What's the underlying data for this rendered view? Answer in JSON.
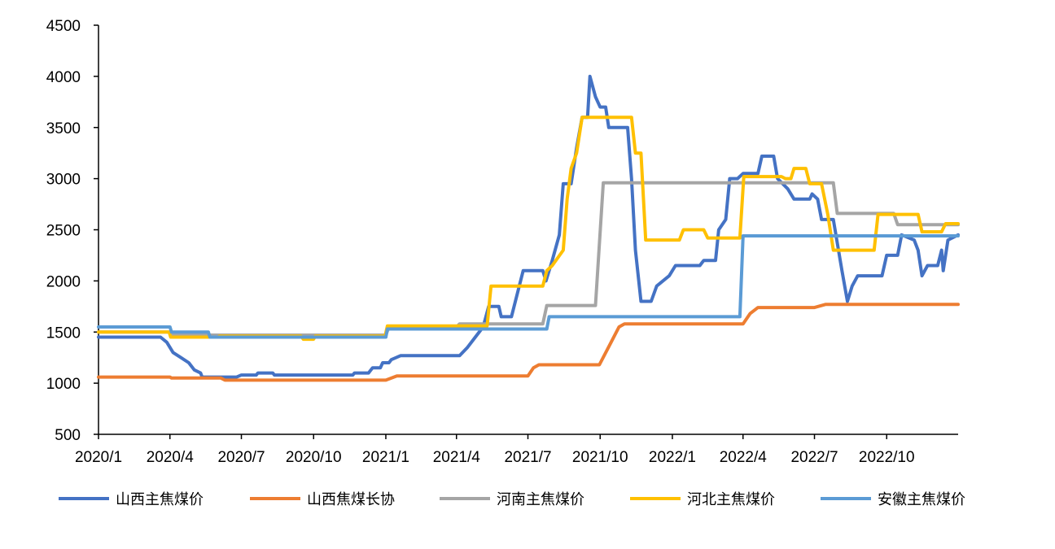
{
  "chart_data": {
    "type": "line",
    "title": "",
    "xlabel": "",
    "ylabel": "",
    "ylim": [
      500,
      4500
    ],
    "y_ticks": [
      500,
      1000,
      1500,
      2000,
      2500,
      3000,
      3500,
      4000,
      4500
    ],
    "x_range": [
      "2020-01-01",
      "2022-12-31"
    ],
    "x_ticks": [
      {
        "date": "2020-01-01",
        "label": "2020/1"
      },
      {
        "date": "2020-04-01",
        "label": "2020/4"
      },
      {
        "date": "2020-07-01",
        "label": "2020/7"
      },
      {
        "date": "2020-10-01",
        "label": "2020/10"
      },
      {
        "date": "2021-01-01",
        "label": "2021/1"
      },
      {
        "date": "2021-04-01",
        "label": "2021/4"
      },
      {
        "date": "2021-07-01",
        "label": "2021/7"
      },
      {
        "date": "2021-10-01",
        "label": "2021/10"
      },
      {
        "date": "2022-01-01",
        "label": "2022/1"
      },
      {
        "date": "2022-04-01",
        "label": "2022/4"
      },
      {
        "date": "2022-07-01",
        "label": "2022/7"
      },
      {
        "date": "2022-10-01",
        "label": "2022/10"
      }
    ],
    "grid": false,
    "legend_position": "bottom",
    "series": [
      {
        "name": "山西主焦煤价",
        "color": "#4472C4",
        "points": [
          [
            "2020-01-01",
            1450
          ],
          [
            "2020-03-20",
            1450
          ],
          [
            "2020-03-28",
            1400
          ],
          [
            "2020-04-05",
            1300
          ],
          [
            "2020-04-15",
            1250
          ],
          [
            "2020-04-25",
            1200
          ],
          [
            "2020-05-02",
            1130
          ],
          [
            "2020-05-10",
            1100
          ],
          [
            "2020-05-12",
            1060
          ],
          [
            "2020-06-25",
            1060
          ],
          [
            "2020-07-01",
            1080
          ],
          [
            "2020-07-20",
            1080
          ],
          [
            "2020-07-22",
            1100
          ],
          [
            "2020-08-10",
            1100
          ],
          [
            "2020-08-12",
            1080
          ],
          [
            "2020-11-20",
            1080
          ],
          [
            "2020-11-22",
            1100
          ],
          [
            "2020-12-10",
            1100
          ],
          [
            "2020-12-15",
            1150
          ],
          [
            "2020-12-25",
            1150
          ],
          [
            "2020-12-28",
            1200
          ],
          [
            "2021-01-05",
            1200
          ],
          [
            "2021-01-08",
            1230
          ],
          [
            "2021-01-20",
            1270
          ],
          [
            "2021-04-05",
            1270
          ],
          [
            "2021-04-15",
            1350
          ],
          [
            "2021-04-25",
            1450
          ],
          [
            "2021-05-05",
            1550
          ],
          [
            "2021-05-12",
            1750
          ],
          [
            "2021-05-25",
            1750
          ],
          [
            "2021-05-28",
            1650
          ],
          [
            "2021-06-10",
            1650
          ],
          [
            "2021-06-15",
            1800
          ],
          [
            "2021-06-25",
            2100
          ],
          [
            "2021-07-20",
            2100
          ],
          [
            "2021-07-24",
            2000
          ],
          [
            "2021-08-01",
            2200
          ],
          [
            "2021-08-10",
            2450
          ],
          [
            "2021-08-15",
            2950
          ],
          [
            "2021-08-25",
            2950
          ],
          [
            "2021-09-01",
            3300
          ],
          [
            "2021-09-08",
            3600
          ],
          [
            "2021-09-15",
            3600
          ],
          [
            "2021-09-18",
            4000
          ],
          [
            "2021-09-25",
            3800
          ],
          [
            "2021-10-01",
            3700
          ],
          [
            "2021-10-08",
            3700
          ],
          [
            "2021-10-12",
            3500
          ],
          [
            "2021-11-05",
            3500
          ],
          [
            "2021-11-10",
            3000
          ],
          [
            "2021-11-15",
            2300
          ],
          [
            "2021-11-22",
            1800
          ],
          [
            "2021-12-05",
            1800
          ],
          [
            "2021-12-12",
            1950
          ],
          [
            "2021-12-28",
            2050
          ],
          [
            "2022-01-05",
            2150
          ],
          [
            "2022-02-05",
            2150
          ],
          [
            "2022-02-10",
            2200
          ],
          [
            "2022-02-25",
            2200
          ],
          [
            "2022-03-01",
            2500
          ],
          [
            "2022-03-10",
            2600
          ],
          [
            "2022-03-15",
            3000
          ],
          [
            "2022-03-25",
            3000
          ],
          [
            "2022-04-01",
            3050
          ],
          [
            "2022-04-20",
            3050
          ],
          [
            "2022-04-25",
            3220
          ],
          [
            "2022-05-10",
            3220
          ],
          [
            "2022-05-15",
            3000
          ],
          [
            "2022-05-28",
            2900
          ],
          [
            "2022-06-05",
            2800
          ],
          [
            "2022-06-25",
            2800
          ],
          [
            "2022-06-28",
            2850
          ],
          [
            "2022-07-05",
            2800
          ],
          [
            "2022-07-10",
            2600
          ],
          [
            "2022-07-25",
            2600
          ],
          [
            "2022-08-05",
            2100
          ],
          [
            "2022-08-12",
            1800
          ],
          [
            "2022-08-18",
            1950
          ],
          [
            "2022-08-25",
            2050
          ],
          [
            "2022-09-25",
            2050
          ],
          [
            "2022-10-01",
            2250
          ],
          [
            "2022-10-15",
            2250
          ],
          [
            "2022-10-20",
            2450
          ],
          [
            "2022-11-05",
            2400
          ],
          [
            "2022-11-10",
            2300
          ],
          [
            "2022-11-15",
            2050
          ],
          [
            "2022-11-22",
            2150
          ],
          [
            "2022-12-05",
            2150
          ],
          [
            "2022-12-10",
            2300
          ],
          [
            "2022-12-12",
            2100
          ],
          [
            "2022-12-18",
            2400
          ],
          [
            "2022-12-31",
            2450
          ]
        ]
      },
      {
        "name": "山西焦煤长协",
        "color": "#ED7D31",
        "points": [
          [
            "2020-01-01",
            1060
          ],
          [
            "2020-04-01",
            1060
          ],
          [
            "2020-04-03",
            1050
          ],
          [
            "2020-06-05",
            1050
          ],
          [
            "2020-06-10",
            1030
          ],
          [
            "2021-01-01",
            1030
          ],
          [
            "2021-01-15",
            1070
          ],
          [
            "2021-07-01",
            1070
          ],
          [
            "2021-07-08",
            1150
          ],
          [
            "2021-07-15",
            1180
          ],
          [
            "2021-09-30",
            1180
          ],
          [
            "2021-10-15",
            1400
          ],
          [
            "2021-10-25",
            1550
          ],
          [
            "2021-11-01",
            1580
          ],
          [
            "2022-04-01",
            1580
          ],
          [
            "2022-04-10",
            1680
          ],
          [
            "2022-04-20",
            1740
          ],
          [
            "2022-07-01",
            1740
          ],
          [
            "2022-07-15",
            1770
          ],
          [
            "2022-12-31",
            1770
          ]
        ]
      },
      {
        "name": "河南主焦煤价",
        "color": "#A5A5A5",
        "points": [
          [
            "2020-01-01",
            1500
          ],
          [
            "2020-04-01",
            1500
          ],
          [
            "2020-04-03",
            1470
          ],
          [
            "2021-01-01",
            1470
          ],
          [
            "2021-01-05",
            1550
          ],
          [
            "2021-04-01",
            1550
          ],
          [
            "2021-04-05",
            1580
          ],
          [
            "2021-07-20",
            1580
          ],
          [
            "2021-07-25",
            1760
          ],
          [
            "2021-09-25",
            1760
          ],
          [
            "2021-10-05",
            2960
          ],
          [
            "2022-07-25",
            2960
          ],
          [
            "2022-07-30",
            2660
          ],
          [
            "2022-10-10",
            2660
          ],
          [
            "2022-10-15",
            2550
          ],
          [
            "2022-12-31",
            2550
          ]
        ]
      },
      {
        "name": "河北主焦煤价",
        "color": "#FFC000",
        "points": [
          [
            "2020-01-01",
            1500
          ],
          [
            "2020-03-31",
            1500
          ],
          [
            "2020-04-02",
            1450
          ],
          [
            "2020-06-01",
            1450
          ],
          [
            "2020-06-03",
            1460
          ],
          [
            "2020-09-15",
            1460
          ],
          [
            "2020-09-18",
            1430
          ],
          [
            "2020-10-01",
            1430
          ],
          [
            "2020-10-03",
            1460
          ],
          [
            "2020-12-31",
            1460
          ],
          [
            "2021-01-03",
            1560
          ],
          [
            "2021-05-10",
            1560
          ],
          [
            "2021-05-15",
            1950
          ],
          [
            "2021-07-20",
            1950
          ],
          [
            "2021-07-25",
            2100
          ],
          [
            "2021-08-01",
            2150
          ],
          [
            "2021-08-15",
            2300
          ],
          [
            "2021-08-20",
            2800
          ],
          [
            "2021-08-25",
            3100
          ],
          [
            "2021-09-01",
            3250
          ],
          [
            "2021-09-08",
            3600
          ],
          [
            "2021-11-10",
            3600
          ],
          [
            "2021-11-15",
            3250
          ],
          [
            "2021-11-22",
            3250
          ],
          [
            "2021-11-28",
            2400
          ],
          [
            "2022-01-10",
            2400
          ],
          [
            "2022-01-15",
            2500
          ],
          [
            "2022-02-10",
            2500
          ],
          [
            "2022-02-15",
            2420
          ],
          [
            "2022-03-28",
            2420
          ],
          [
            "2022-04-02",
            3020
          ],
          [
            "2022-05-20",
            3020
          ],
          [
            "2022-05-25",
            3000
          ],
          [
            "2022-06-01",
            3000
          ],
          [
            "2022-06-05",
            3100
          ],
          [
            "2022-06-20",
            3100
          ],
          [
            "2022-06-25",
            2950
          ],
          [
            "2022-07-10",
            2950
          ],
          [
            "2022-07-18",
            2650
          ],
          [
            "2022-07-25",
            2300
          ],
          [
            "2022-09-15",
            2300
          ],
          [
            "2022-09-20",
            2650
          ],
          [
            "2022-11-10",
            2650
          ],
          [
            "2022-11-15",
            2480
          ],
          [
            "2022-12-10",
            2480
          ],
          [
            "2022-12-15",
            2560
          ],
          [
            "2022-12-31",
            2560
          ]
        ]
      },
      {
        "name": "安徽主焦煤价",
        "color": "#5B9BD5",
        "points": [
          [
            "2020-01-01",
            1550
          ],
          [
            "2020-04-01",
            1550
          ],
          [
            "2020-04-03",
            1500
          ],
          [
            "2020-05-20",
            1500
          ],
          [
            "2020-05-22",
            1450
          ],
          [
            "2021-01-01",
            1450
          ],
          [
            "2021-01-03",
            1530
          ],
          [
            "2021-07-25",
            1530
          ],
          [
            "2021-07-28",
            1650
          ],
          [
            "2022-03-28",
            1650
          ],
          [
            "2022-04-01",
            2440
          ],
          [
            "2022-12-31",
            2440
          ]
        ]
      }
    ]
  }
}
